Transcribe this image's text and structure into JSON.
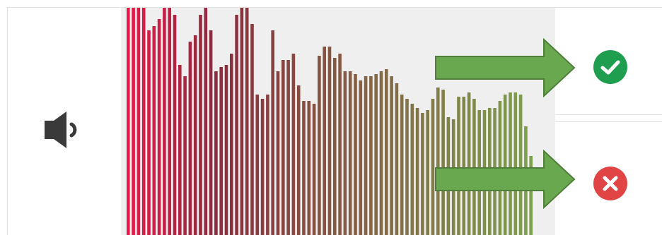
{
  "icons": {
    "speaker": "speaker-icon",
    "confirm": "check-circle-icon",
    "reject": "x-circle-icon",
    "arrow": "arrow-right-icon"
  },
  "colors": {
    "confirm": "#1e9e4e",
    "reject": "#e04444",
    "arrow": "#6aa84f",
    "arrow_border": "#4f7f3a",
    "spectrum_start": "#e8194a",
    "spectrum_mid": "#8a2d3e",
    "spectrum_end": "#7ea04e"
  },
  "spectrum": {
    "levels": [
      1.0,
      1.0,
      1.0,
      1.0,
      0.9,
      0.92,
      0.95,
      1.0,
      1.0,
      0.97,
      0.75,
      0.7,
      0.85,
      0.88,
      0.97,
      1.0,
      0.9,
      0.72,
      0.74,
      0.75,
      0.8,
      0.97,
      1.0,
      1.0,
      0.93,
      0.62,
      0.6,
      0.62,
      0.9,
      0.72,
      0.77,
      0.77,
      0.8,
      0.66,
      0.59,
      0.59,
      0.58,
      0.79,
      0.83,
      0.83,
      0.78,
      0.8,
      0.72,
      0.72,
      0.71,
      0.68,
      0.7,
      0.7,
      0.71,
      0.72,
      0.73,
      0.7,
      0.67,
      0.62,
      0.6,
      0.58,
      0.56,
      0.54,
      0.55,
      0.6,
      0.65,
      0.64,
      0.52,
      0.51,
      0.61,
      0.61,
      0.63,
      0.6,
      0.55,
      0.55,
      0.56,
      0.56,
      0.59,
      0.62,
      0.63,
      0.63,
      0.62,
      0.48,
      0.35
    ]
  }
}
